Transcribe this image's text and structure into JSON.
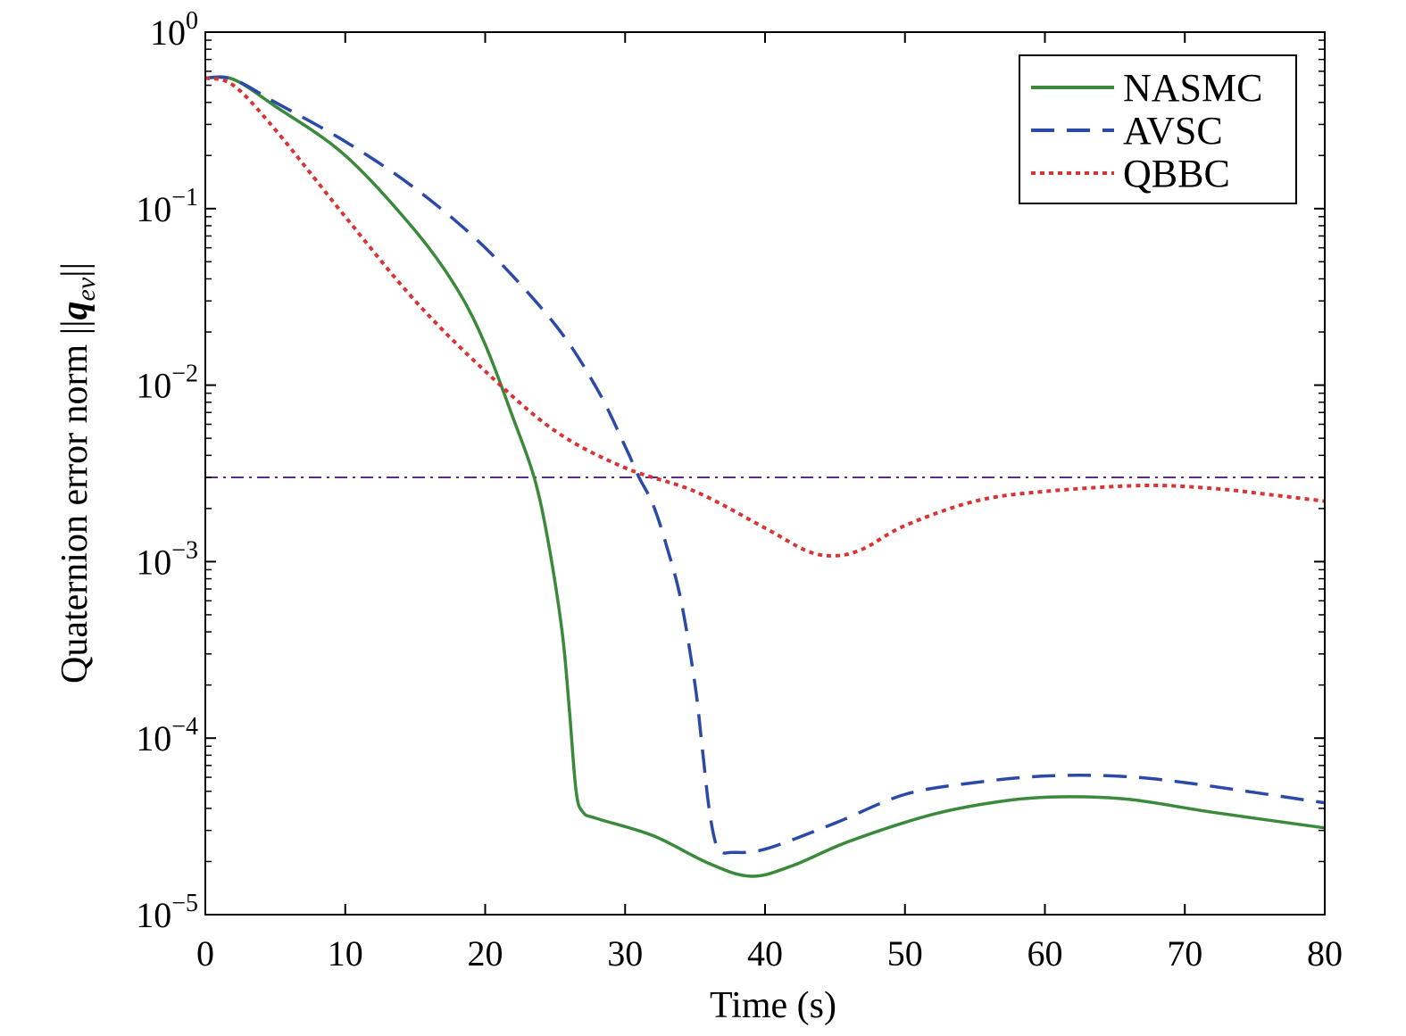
{
  "chart_data": {
    "type": "line",
    "xlabel": "Time (s)",
    "ylabel": {
      "prefix": "Quaternion error norm ||",
      "symbol": "q",
      "subscript": "ev",
      "suffix": "||"
    },
    "xlim": [
      0,
      80
    ],
    "ylim": [
      1e-05,
      1
    ],
    "yscale": "log",
    "grid": false,
    "legend_position": "top-right",
    "x_ticks": [
      0,
      10,
      20,
      30,
      40,
      50,
      60,
      70,
      80
    ],
    "x_tick_labels": [
      "0",
      "10",
      "20",
      "30",
      "40",
      "50",
      "60",
      "70",
      "80"
    ],
    "y_ticks": [
      {
        "value": 1,
        "base": "10",
        "exp": "0"
      },
      {
        "value": 0.1,
        "base": "10",
        "exp": "−1"
      },
      {
        "value": 0.01,
        "base": "10",
        "exp": "−2"
      },
      {
        "value": 0.001,
        "base": "10",
        "exp": "−3"
      },
      {
        "value": 0.0001,
        "base": "10",
        "exp": "−4"
      },
      {
        "value": 1e-05,
        "base": "10",
        "exp": "−5"
      }
    ],
    "series": [
      {
        "name": "NASMC",
        "color": "#3b8a3b",
        "style": "solid",
        "x": [
          0,
          2,
          5,
          10,
          15,
          18,
          20,
          22,
          23.5,
          24.5,
          25.5,
          26,
          26.5,
          27,
          28,
          32,
          36,
          39,
          42,
          46,
          52,
          57,
          61,
          66,
          72,
          80
        ],
        "y": [
          0.55,
          0.54,
          0.38,
          0.2,
          0.075,
          0.035,
          0.017,
          0.0065,
          0.003,
          0.0013,
          0.0004,
          0.00015,
          5e-05,
          3.8e-05,
          3.5e-05,
          2.8e-05,
          1.95e-05,
          1.65e-05,
          1.9e-05,
          2.6e-05,
          3.7e-05,
          4.4e-05,
          4.65e-05,
          4.5e-05,
          3.8e-05,
          3.1e-05
        ]
      },
      {
        "name": "AVSC",
        "color": "#2b4aa8",
        "style": "dashed",
        "x": [
          0,
          2,
          5,
          10,
          15,
          20,
          25,
          28,
          30,
          31,
          32,
          33,
          34,
          35,
          35.5,
          36,
          36.5,
          37,
          37.5,
          40,
          45,
          50,
          55,
          60,
          65,
          70,
          80
        ],
        "y": [
          0.55,
          0.54,
          0.4,
          0.24,
          0.13,
          0.06,
          0.022,
          0.0095,
          0.0045,
          0.003,
          0.0021,
          0.0012,
          0.0006,
          0.0002,
          9e-05,
          4e-05,
          2.5e-05,
          2.25e-05,
          2.25e-05,
          2.35e-05,
          3.3e-05,
          4.8e-05,
          5.6e-05,
          6.1e-05,
          6.1e-05,
          5.6e-05,
          4.3e-05
        ]
      },
      {
        "name": "QBBC",
        "color": "#d93333",
        "style": "dotted",
        "x": [
          0,
          2,
          5,
          10,
          15,
          20,
          25,
          30,
          35,
          40,
          43,
          45,
          47,
          50,
          55,
          60,
          67,
          72,
          76,
          80
        ],
        "y": [
          0.55,
          0.5,
          0.28,
          0.09,
          0.03,
          0.012,
          0.0055,
          0.0034,
          0.0025,
          0.00155,
          0.00115,
          0.00108,
          0.00118,
          0.0016,
          0.0022,
          0.0025,
          0.0027,
          0.0026,
          0.0024,
          0.0022
        ]
      }
    ],
    "reference_line": {
      "y": 0.003,
      "color": "#5b2a8a",
      "style": "dashdot"
    }
  }
}
